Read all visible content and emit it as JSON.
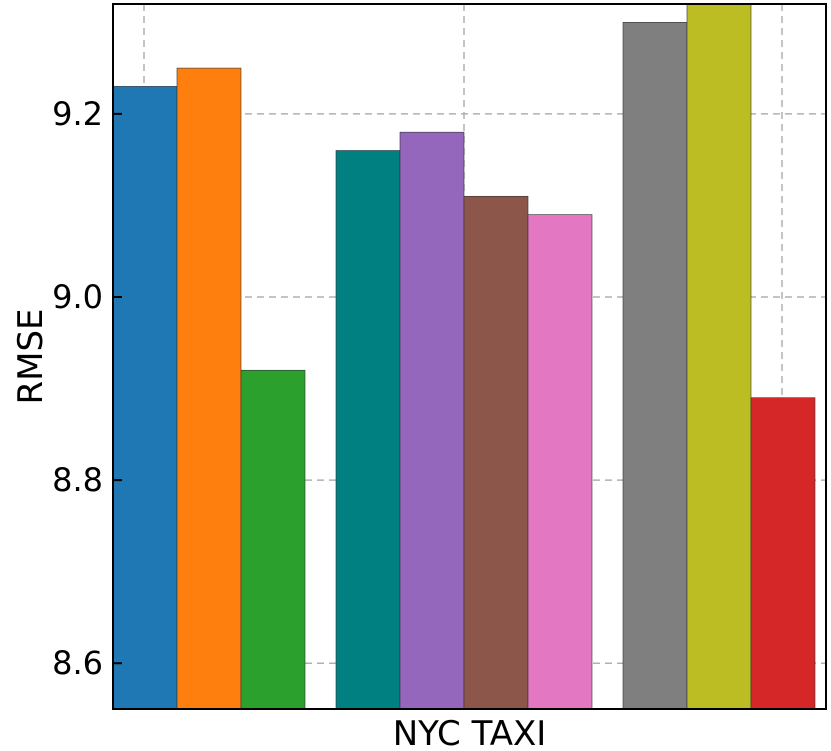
{
  "chart_data": {
    "type": "bar",
    "xlabel": "NYC TAXI",
    "ylabel": "RMSE",
    "ylim": [
      8.55,
      9.32
    ],
    "yticks": [
      "8.6",
      "8.8",
      "9.0",
      "9.2"
    ],
    "grid": true,
    "legend": "none",
    "groups": [
      {
        "bars": [
          {
            "value": 9.23,
            "color": "#1f77b4"
          },
          {
            "value": 9.25,
            "color": "#ff7f0e"
          },
          {
            "value": 8.92,
            "color": "#2ca02c"
          }
        ]
      },
      {
        "bars": [
          {
            "value": 9.16,
            "color": "#008080"
          },
          {
            "value": 9.18,
            "color": "#9467bd"
          },
          {
            "value": 9.11,
            "color": "#8c564b"
          },
          {
            "value": 9.09,
            "color": "#e377c2"
          }
        ]
      },
      {
        "bars": [
          {
            "value": 9.3,
            "color": "#7f7f7f"
          },
          {
            "value": 9.32,
            "color": "#bcbd22"
          },
          {
            "value": 8.89,
            "color": "#d62728"
          }
        ]
      }
    ]
  }
}
